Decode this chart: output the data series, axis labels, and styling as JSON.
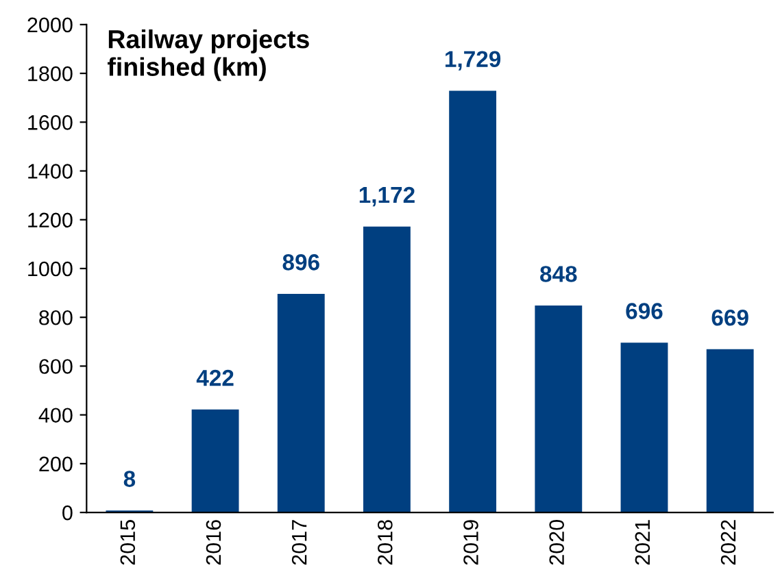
{
  "chart_data": {
    "type": "bar",
    "title": "Railway projects\nfinished (km)",
    "categories": [
      "2015",
      "2016",
      "2017",
      "2018",
      "2019",
      "2020",
      "2021",
      "2022"
    ],
    "values": [
      8,
      422,
      896,
      1172,
      1729,
      848,
      696,
      669
    ],
    "value_labels": [
      "8",
      "422",
      "896",
      "1,172",
      "1,729",
      "848",
      "696",
      "669"
    ],
    "color": "#003f80",
    "ylim": [
      0,
      2000
    ],
    "yticks": [
      0,
      200,
      400,
      600,
      800,
      1000,
      1200,
      1400,
      1600,
      1800,
      2000
    ],
    "grid": false,
    "legend": false
  }
}
